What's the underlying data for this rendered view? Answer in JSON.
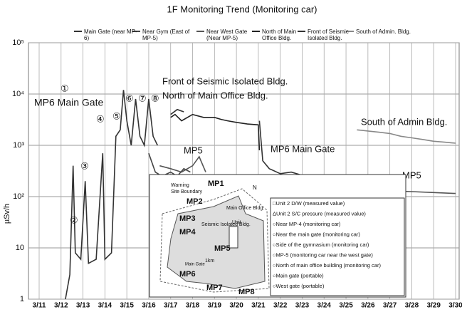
{
  "chart_data": {
    "type": "line",
    "title": "1F Monitoring Trend  (Monitoring car)",
    "y_label": "µSv/h",
    "log_scale_y": true,
    "grid": true,
    "xlim": [
      11,
      30
    ],
    "xticks": [
      {
        "value": 11,
        "label": "3/11"
      },
      {
        "value": 12,
        "label": "3/12"
      },
      {
        "value": 13,
        "label": "3/13"
      },
      {
        "value": 14,
        "label": "3/14"
      },
      {
        "value": 15,
        "label": "3/15"
      },
      {
        "value": 16,
        "label": "3/16"
      },
      {
        "value": 17,
        "label": "3/17"
      },
      {
        "value": 18,
        "label": "3/18"
      },
      {
        "value": 19,
        "label": "3/19"
      },
      {
        "value": 20,
        "label": "3/20"
      },
      {
        "value": 21,
        "label": "3/21"
      },
      {
        "value": 22,
        "label": "3/22"
      },
      {
        "value": 23,
        "label": "3/23"
      },
      {
        "value": 24,
        "label": "3/24"
      },
      {
        "value": 25,
        "label": "3/25"
      },
      {
        "value": 26,
        "label": "3/26"
      },
      {
        "value": 27,
        "label": "3/27"
      },
      {
        "value": 28,
        "label": "3/28"
      },
      {
        "value": 29,
        "label": "3/29"
      },
      {
        "value": 30,
        "label": "3/30"
      }
    ],
    "ylim": [
      1,
      100000
    ],
    "yticks": [
      1,
      10,
      {
        "value": 100,
        "label": "10²"
      },
      {
        "value": 1000,
        "label": "10³"
      },
      {
        "value": 10000,
        "label": "10⁴"
      },
      {
        "value": 100000,
        "label": "10⁵"
      }
    ],
    "series": [
      {
        "name": "Main Gate (near MP-6)",
        "color": "#333333",
        "x": [
          12.2,
          12.4,
          12.55,
          12.65,
          12.9,
          13.1,
          13.25,
          13.6,
          13.9,
          14.0,
          14.3,
          14.5,
          14.7,
          14.85,
          15.0,
          15.2,
          15.4,
          15.6,
          15.8,
          16.0,
          16.2,
          16.4,
          18,
          21.05,
          21.2,
          21.5,
          22,
          22.5,
          23,
          23.5,
          24,
          24.5,
          25,
          25.3
        ],
        "values": [
          1,
          3,
          400,
          8,
          6,
          200,
          5,
          6,
          700,
          6,
          8,
          1500,
          2000,
          12000,
          3000,
          1000,
          8000,
          1500,
          1000,
          8000,
          1500,
          1000,
          null,
          3000,
          500,
          350,
          280,
          300,
          260,
          250,
          240,
          230,
          220,
          200
        ]
      },
      {
        "name": "Near Gym (East of MP-5)",
        "color": "#444444",
        "x": [
          16.0,
          16.3,
          16.6,
          17.0,
          17.3,
          17.6,
          17.9
        ],
        "values": [
          700,
          300,
          250,
          300,
          250,
          350,
          300
        ]
      },
      {
        "name": "Near West Gate (Near MP-5)",
        "color": "#555555",
        "x": [
          16.5,
          17,
          17.5,
          18,
          18.3,
          18.6,
          22,
          25.5,
          26,
          27,
          28,
          29,
          30
        ],
        "values": [
          400,
          350,
          300,
          400,
          600,
          300,
          null,
          140,
          135,
          130,
          125,
          120,
          115
        ]
      },
      {
        "name": "North of Main Office Bldg.",
        "color": "#222222",
        "x": [
          17.0,
          17.2,
          17.5,
          18.0,
          18.5,
          19.0,
          19.3,
          19.6,
          20.0,
          20.5,
          21.0,
          21.05
        ],
        "values": [
          3500,
          4000,
          3000,
          4000,
          3500,
          3500,
          3200,
          3000,
          2800,
          2600,
          2500,
          800
        ]
      },
      {
        "name": "Front of Seismic Isolated Bldg.",
        "color": "#333333",
        "x": [
          17,
          17.3,
          17.6
        ],
        "values": [
          4000,
          5000,
          4500
        ]
      },
      {
        "name": "South of Admin. Bldg.",
        "color": "#888888",
        "x": [
          25.5,
          26,
          26.5,
          27,
          27.5,
          28,
          28.5,
          29,
          29.5,
          30
        ],
        "values": [
          2000,
          1900,
          1800,
          1700,
          1500,
          1400,
          1300,
          1200,
          1150,
          1100
        ]
      }
    ],
    "annotations": [
      "①",
      "②",
      "③",
      "④",
      "⑤",
      "⑥",
      "⑦",
      "⑧",
      "MP6 Main Gate",
      "Front of Seismic Isolated  Bldg.",
      "North of Main Office Bldg.",
      "MP5",
      "MP6 Main Gate",
      "South of Admin Bldg.",
      "MP5"
    ]
  },
  "inset": {
    "map_labels": [
      "Warning",
      "Site Boundary",
      "MP1",
      "MP2",
      "MP3",
      "MP4",
      "MP5",
      "MP6",
      "MP7",
      "MP8",
      "Main Office Bldg.",
      "Seismic Isolated Bldg.",
      "Unit",
      "Main Gate",
      "1km",
      "N"
    ],
    "legend": [
      "□Unit 2 D/W (measured value)",
      "ΔUnit 2 S/C pressure (measured value)",
      "○Near MP-4 (monitoring car)",
      "○Near the main gate (monitoring car)",
      "○Side of the gymnasium (monitoring car)",
      "○MP-5 (monitoring car near the west gate)",
      "○North of main office building (monitoring car)",
      "○Main gate (portable)",
      "○West gate (portable)"
    ]
  }
}
